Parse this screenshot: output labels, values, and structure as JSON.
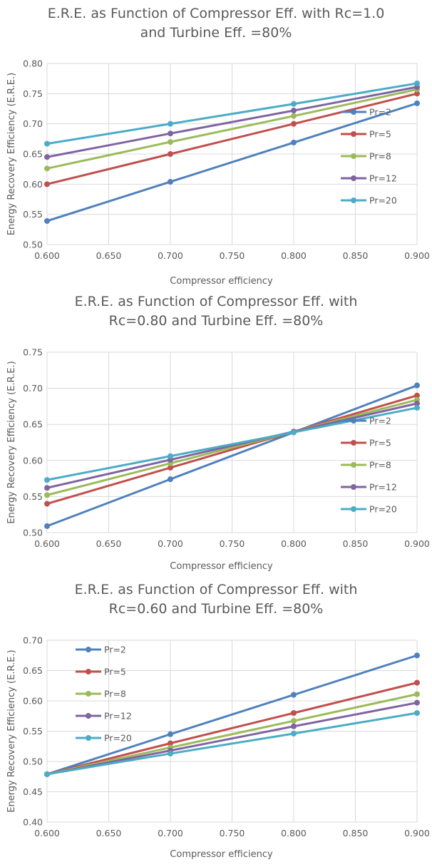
{
  "chart_data": [
    {
      "type": "line",
      "title_lines": [
        "E.R.E. as Function of Compressor Eff. with Rc=1.0",
        "and Turbine Eff. =80%"
      ],
      "xlabel": "Compressor efficiency",
      "ylabel": "Energy Recovery Efficiency (E.R.E.)",
      "x": [
        0.6,
        0.7,
        0.8,
        0.9
      ],
      "xlim": [
        0.6,
        0.9
      ],
      "ylim": [
        0.5,
        0.8
      ],
      "xticks": [
        "0.600",
        "0.650",
        "0.700",
        "0.750",
        "0.800",
        "0.850",
        "0.900"
      ],
      "yticks": [
        "0.50",
        "0.55",
        "0.60",
        "0.65",
        "0.70",
        "0.75",
        "0.80"
      ],
      "grid": true,
      "legend_position": "right",
      "series": [
        {
          "name": "Pr=2",
          "color": "#4f81bd",
          "values": [
            0.539,
            0.604,
            0.669,
            0.734
          ]
        },
        {
          "name": "Pr=5",
          "color": "#c0504d",
          "values": [
            0.6,
            0.65,
            0.7,
            0.75
          ]
        },
        {
          "name": "Pr=8",
          "color": "#9bbb59",
          "values": [
            0.626,
            0.67,
            0.713,
            0.757
          ]
        },
        {
          "name": "Pr=12",
          "color": "#8064a2",
          "values": [
            0.645,
            0.684,
            0.722,
            0.761
          ]
        },
        {
          "name": "Pr=20",
          "color": "#4bacc6",
          "values": [
            0.667,
            0.7,
            0.733,
            0.767
          ]
        }
      ]
    },
    {
      "type": "line",
      "title_lines": [
        "E.R.E. as Function of Compressor Eff. with",
        "Rc=0.80 and Turbine Eff. =80%"
      ],
      "xlabel": "Compressor efficiency",
      "ylabel": "Energy Recovery Efficiency (E.R.E.)",
      "x": [
        0.6,
        0.7,
        0.8,
        0.9
      ],
      "xlim": [
        0.6,
        0.9
      ],
      "ylim": [
        0.5,
        0.75
      ],
      "xticks": [
        "0.600",
        "0.650",
        "0.700",
        "0.750",
        "0.800",
        "0.850",
        "0.900"
      ],
      "yticks": [
        "0.50",
        "0.55",
        "0.60",
        "0.65",
        "0.70",
        "0.75"
      ],
      "grid": true,
      "legend_position": "right",
      "series": [
        {
          "name": "Pr=2",
          "color": "#4f81bd",
          "values": [
            0.509,
            0.574,
            0.639,
            0.704
          ]
        },
        {
          "name": "Pr=5",
          "color": "#c0504d",
          "values": [
            0.54,
            0.59,
            0.64,
            0.69
          ]
        },
        {
          "name": "Pr=8",
          "color": "#9bbb59",
          "values": [
            0.552,
            0.596,
            0.64,
            0.684
          ]
        },
        {
          "name": "Pr=12",
          "color": "#8064a2",
          "values": [
            0.562,
            0.601,
            0.64,
            0.679
          ]
        },
        {
          "name": "Pr=20",
          "color": "#4bacc6",
          "values": [
            0.573,
            0.606,
            0.639,
            0.673
          ]
        }
      ]
    },
    {
      "type": "line",
      "title_lines": [
        "E.R.E. as Function of Compressor Eff. with",
        "Rc=0.60 and Turbine Eff. =80%"
      ],
      "xlabel": "Compressor efficiency",
      "ylabel": "Energy Recovery Efficiency (E.R.E.)",
      "x": [
        0.6,
        0.7,
        0.8,
        0.9
      ],
      "xlim": [
        0.6,
        0.9
      ],
      "ylim": [
        0.4,
        0.7
      ],
      "xticks": [
        "0.600",
        "0.650",
        "0.700",
        "0.750",
        "0.800",
        "0.850",
        "0.900"
      ],
      "yticks": [
        "0.40",
        "0.45",
        "0.50",
        "0.55",
        "0.60",
        "0.65",
        "0.70"
      ],
      "grid": true,
      "legend_position": "top-left",
      "series": [
        {
          "name": "Pr=2",
          "color": "#4f81bd",
          "values": [
            0.479,
            0.545,
            0.61,
            0.675
          ]
        },
        {
          "name": "Pr=5",
          "color": "#c0504d",
          "values": [
            0.479,
            0.53,
            0.58,
            0.63
          ]
        },
        {
          "name": "Pr=8",
          "color": "#9bbb59",
          "values": [
            0.479,
            0.523,
            0.567,
            0.611
          ]
        },
        {
          "name": "Pr=12",
          "color": "#8064a2",
          "values": [
            0.479,
            0.518,
            0.558,
            0.597
          ]
        },
        {
          "name": "Pr=20",
          "color": "#4bacc6",
          "values": [
            0.479,
            0.513,
            0.546,
            0.58
          ]
        }
      ]
    }
  ]
}
